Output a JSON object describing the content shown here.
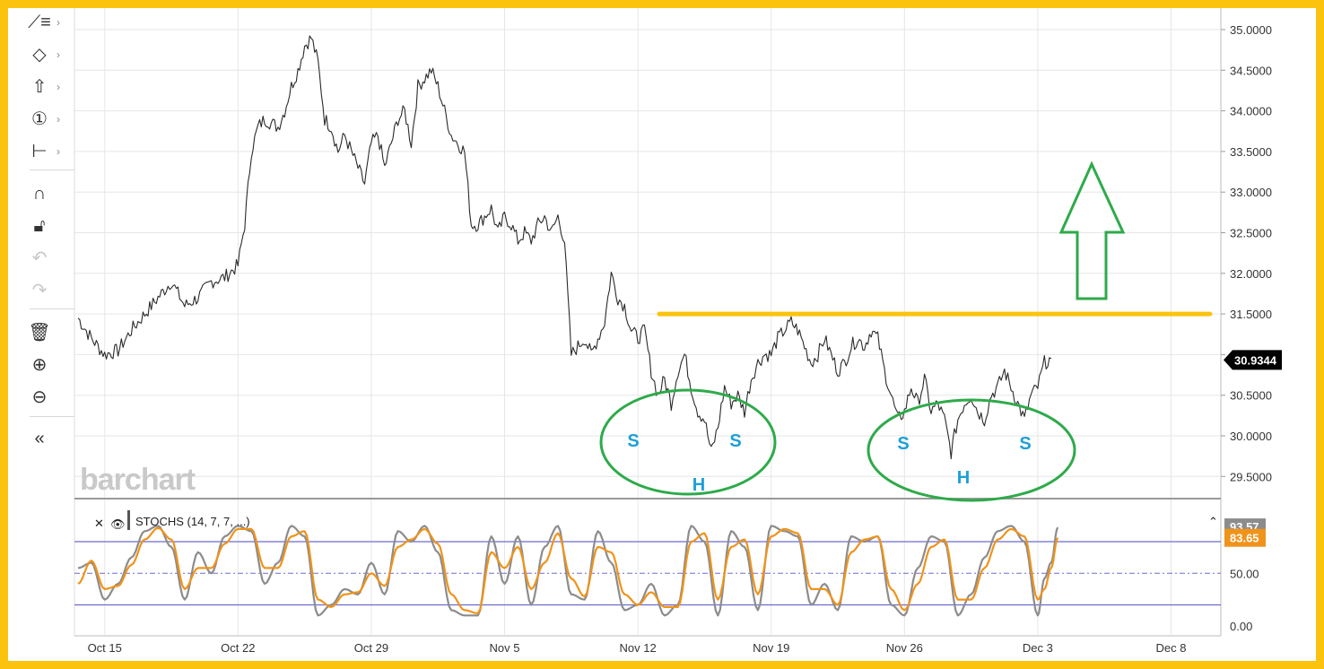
{
  "toolbar": {
    "items": [
      {
        "icon": "trend-line-icon",
        "glyph": "⟋≡",
        "caret": "›"
      },
      {
        "icon": "shapes-icon",
        "glyph": "◇",
        "caret": "›"
      },
      {
        "icon": "arrow-up-icon",
        "glyph": "⇧",
        "caret": "›"
      },
      {
        "icon": "number-circle-icon",
        "glyph": "①",
        "caret": "›"
      },
      {
        "icon": "measure-icon",
        "glyph": "⊢",
        "caret": "›"
      },
      {
        "icon": "magnet-icon",
        "glyph": "∩",
        "caret": ""
      },
      {
        "icon": "unlock-icon",
        "glyph": "🔓︎",
        "caret": ""
      },
      {
        "icon": "undo-icon",
        "glyph": "↶",
        "caret": ""
      },
      {
        "icon": "redo-icon",
        "glyph": "↷",
        "caret": ""
      },
      {
        "icon": "trash-icon",
        "glyph": "🗑︎",
        "caret": ""
      },
      {
        "icon": "zoom-in-icon",
        "glyph": "⊕",
        "caret": ""
      },
      {
        "icon": "zoom-out-icon",
        "glyph": "⊖",
        "caret": ""
      },
      {
        "icon": "collapse-icon",
        "glyph": "«",
        "caret": ""
      }
    ]
  },
  "watermark": "barchart",
  "chart_data": {
    "type": "line",
    "price": {
      "y_ticks": [
        "35.0000",
        "34.5000",
        "34.0000",
        "33.5000",
        "33.0000",
        "32.5000",
        "32.0000",
        "31.5000",
        "31.0000",
        "30.5000",
        "30.0000",
        "29.5000"
      ],
      "ylim": [
        29.3,
        35.1
      ],
      "last_value": "30.9344",
      "last_value_color": "#000000",
      "resistance_level": 31.5,
      "resistance_color": "#fbc30d",
      "annotations": [
        "S",
        "H",
        "S",
        "S",
        "H",
        "S"
      ],
      "annotation_color": "#1e9fd8",
      "ellipse_color": "#2eaa4a",
      "arrow_color": "#2eaa4a",
      "keypoints": [
        [
          0,
          31.45
        ],
        [
          2,
          31.2
        ],
        [
          4,
          31.0
        ],
        [
          6,
          31.05
        ],
        [
          8,
          31.3
        ],
        [
          10,
          31.5
        ],
        [
          12,
          31.7
        ],
        [
          14,
          31.9
        ],
        [
          16,
          31.6
        ],
        [
          18,
          31.7
        ],
        [
          20,
          31.9
        ],
        [
          22,
          31.95
        ],
        [
          24,
          32.1
        ],
        [
          25,
          32.6
        ],
        [
          26,
          33.5
        ],
        [
          27,
          33.8
        ],
        [
          28,
          33.9
        ],
        [
          30,
          33.8
        ],
        [
          31,
          34.0
        ],
        [
          32,
          34.3
        ],
        [
          33,
          34.5
        ],
        [
          34,
          34.8
        ],
        [
          35,
          34.9
        ],
        [
          36,
          34.6
        ],
        [
          37,
          33.9
        ],
        [
          38,
          33.8
        ],
        [
          39,
          33.5
        ],
        [
          40,
          33.7
        ],
        [
          41,
          33.5
        ],
        [
          42,
          33.3
        ],
        [
          43,
          33.1
        ],
        [
          44,
          33.6
        ],
        [
          45,
          33.7
        ],
        [
          46,
          33.3
        ],
        [
          47,
          33.6
        ],
        [
          48,
          33.9
        ],
        [
          49,
          34.0
        ],
        [
          50,
          33.6
        ],
        [
          51,
          34.3
        ],
        [
          52,
          34.4
        ],
        [
          53,
          34.5
        ],
        [
          54,
          34.3
        ],
        [
          55,
          34.0
        ],
        [
          56,
          33.7
        ],
        [
          57,
          33.6
        ],
        [
          58,
          33.5
        ],
        [
          59,
          32.6
        ],
        [
          60,
          32.6
        ],
        [
          61,
          32.7
        ],
        [
          62,
          32.8
        ],
        [
          63,
          32.5
        ],
        [
          64,
          32.7
        ],
        [
          65,
          32.6
        ],
        [
          66,
          32.4
        ],
        [
          67,
          32.5
        ],
        [
          68,
          32.4
        ],
        [
          69,
          32.6
        ],
        [
          70,
          32.7
        ],
        [
          71,
          32.5
        ],
        [
          72,
          32.7
        ],
        [
          73,
          32.4
        ],
        [
          74,
          31.0
        ],
        [
          75,
          31.1
        ],
        [
          76,
          31.2
        ],
        [
          77,
          31.0
        ],
        [
          78,
          31.2
        ],
        [
          79,
          31.4
        ],
        [
          80,
          32.0
        ],
        [
          81,
          31.7
        ],
        [
          82,
          31.6
        ],
        [
          83,
          31.3
        ],
        [
          84,
          31.2
        ],
        [
          85,
          31.3
        ],
        [
          86,
          30.8
        ],
        [
          87,
          30.5
        ],
        [
          88,
          30.7
        ],
        [
          89,
          30.4
        ],
        [
          90,
          30.8
        ],
        [
          91,
          31.0
        ],
        [
          92,
          30.6
        ],
        [
          93,
          30.3
        ],
        [
          94,
          30.2
        ],
        [
          95,
          29.8
        ],
        [
          96,
          30.1
        ],
        [
          97,
          30.6
        ],
        [
          98,
          30.4
        ],
        [
          99,
          30.5
        ],
        [
          100,
          30.3
        ],
        [
          101,
          30.7
        ],
        [
          102,
          30.9
        ],
        [
          103,
          31.0
        ],
        [
          104,
          31.0
        ],
        [
          105,
          31.2
        ],
        [
          106,
          31.3
        ],
        [
          107,
          31.4
        ],
        [
          108,
          31.3
        ],
        [
          109,
          31.1
        ],
        [
          110,
          30.9
        ],
        [
          111,
          31.0
        ],
        [
          112,
          31.2
        ],
        [
          113,
          31.0
        ],
        [
          114,
          30.8
        ],
        [
          115,
          30.9
        ],
        [
          116,
          31.1
        ],
        [
          117,
          31.2
        ],
        [
          118,
          31.1
        ],
        [
          119,
          31.3
        ],
        [
          120,
          31.2
        ],
        [
          121,
          30.8
        ],
        [
          122,
          30.5
        ],
        [
          123,
          30.2
        ],
        [
          124,
          30.3
        ],
        [
          125,
          30.6
        ],
        [
          126,
          30.4
        ],
        [
          127,
          30.7
        ],
        [
          128,
          30.3
        ],
        [
          129,
          30.4
        ],
        [
          130,
          30.2
        ],
        [
          131,
          29.8
        ],
        [
          132,
          30.2
        ],
        [
          133,
          30.4
        ],
        [
          134,
          30.5
        ],
        [
          135,
          30.3
        ],
        [
          136,
          30.2
        ],
        [
          137,
          30.5
        ],
        [
          138,
          30.6
        ],
        [
          139,
          30.8
        ],
        [
          140,
          30.6
        ],
        [
          141,
          30.4
        ],
        [
          142,
          30.2
        ],
        [
          143,
          30.5
        ],
        [
          144,
          30.6
        ],
        [
          145,
          30.9
        ],
        [
          146,
          30.95
        ]
      ]
    },
    "stochastic": {
      "label": "STOCHS (14, 7, 7, ...)",
      "y_ticks": [
        "50.00",
        "0.00"
      ],
      "ylim": [
        -5,
        105
      ],
      "upper_band": 80,
      "lower_band": 20,
      "mid_band": 50,
      "last_k": "93.57",
      "last_d": "83.65",
      "k_color": "#8c8c8c",
      "d_color": "#f0931a",
      "band_color": "#6b6bd0",
      "k_points": [
        [
          0,
          55
        ],
        [
          2,
          60
        ],
        [
          4,
          25
        ],
        [
          6,
          40
        ],
        [
          8,
          65
        ],
        [
          10,
          90
        ],
        [
          12,
          95
        ],
        [
          14,
          75
        ],
        [
          16,
          25
        ],
        [
          18,
          70
        ],
        [
          20,
          50
        ],
        [
          22,
          85
        ],
        [
          24,
          95
        ],
        [
          26,
          90
        ],
        [
          28,
          40
        ],
        [
          30,
          60
        ],
        [
          32,
          95
        ],
        [
          34,
          85
        ],
        [
          36,
          10
        ],
        [
          38,
          20
        ],
        [
          40,
          35
        ],
        [
          42,
          30
        ],
        [
          44,
          60
        ],
        [
          46,
          30
        ],
        [
          48,
          90
        ],
        [
          50,
          80
        ],
        [
          52,
          95
        ],
        [
          54,
          70
        ],
        [
          56,
          15
        ],
        [
          58,
          10
        ],
        [
          60,
          10
        ],
        [
          62,
          85
        ],
        [
          64,
          40
        ],
        [
          66,
          85
        ],
        [
          68,
          20
        ],
        [
          70,
          75
        ],
        [
          72,
          95
        ],
        [
          74,
          30
        ],
        [
          76,
          25
        ],
        [
          78,
          90
        ],
        [
          80,
          60
        ],
        [
          82,
          15
        ],
        [
          84,
          20
        ],
        [
          86,
          40
        ],
        [
          88,
          10
        ],
        [
          90,
          20
        ],
        [
          92,
          95
        ],
        [
          94,
          80
        ],
        [
          96,
          10
        ],
        [
          98,
          90
        ],
        [
          100,
          75
        ],
        [
          102,
          15
        ],
        [
          104,
          95
        ],
        [
          106,
          90
        ],
        [
          108,
          85
        ],
        [
          110,
          20
        ],
        [
          112,
          40
        ],
        [
          114,
          15
        ],
        [
          116,
          85
        ],
        [
          118,
          80
        ],
        [
          120,
          85
        ],
        [
          122,
          20
        ],
        [
          124,
          10
        ],
        [
          126,
          55
        ],
        [
          128,
          85
        ],
        [
          130,
          80
        ],
        [
          132,
          10
        ],
        [
          134,
          30
        ],
        [
          136,
          65
        ],
        [
          138,
          90
        ],
        [
          140,
          95
        ],
        [
          142,
          80
        ],
        [
          144,
          10
        ],
        [
          145,
          45
        ],
        [
          146,
          60
        ],
        [
          147,
          93.57
        ]
      ],
      "d_points": [
        [
          0,
          40
        ],
        [
          2,
          62
        ],
        [
          4,
          35
        ],
        [
          6,
          38
        ],
        [
          8,
          58
        ],
        [
          10,
          82
        ],
        [
          12,
          93
        ],
        [
          14,
          82
        ],
        [
          16,
          35
        ],
        [
          18,
          55
        ],
        [
          20,
          55
        ],
        [
          22,
          78
        ],
        [
          24,
          92
        ],
        [
          26,
          92
        ],
        [
          28,
          55
        ],
        [
          30,
          55
        ],
        [
          32,
          85
        ],
        [
          34,
          90
        ],
        [
          36,
          25
        ],
        [
          38,
          18
        ],
        [
          40,
          30
        ],
        [
          42,
          32
        ],
        [
          44,
          50
        ],
        [
          46,
          38
        ],
        [
          48,
          75
        ],
        [
          50,
          82
        ],
        [
          52,
          92
        ],
        [
          54,
          78
        ],
        [
          56,
          30
        ],
        [
          58,
          15
        ],
        [
          60,
          12
        ],
        [
          62,
          70
        ],
        [
          64,
          55
        ],
        [
          66,
          75
        ],
        [
          68,
          35
        ],
        [
          70,
          60
        ],
        [
          72,
          88
        ],
        [
          74,
          45
        ],
        [
          76,
          28
        ],
        [
          78,
          75
        ],
        [
          80,
          70
        ],
        [
          82,
          30
        ],
        [
          84,
          20
        ],
        [
          86,
          32
        ],
        [
          88,
          18
        ],
        [
          90,
          18
        ],
        [
          92,
          80
        ],
        [
          94,
          88
        ],
        [
          96,
          25
        ],
        [
          98,
          75
        ],
        [
          100,
          82
        ],
        [
          102,
          30
        ],
        [
          104,
          85
        ],
        [
          106,
          92
        ],
        [
          108,
          88
        ],
        [
          110,
          35
        ],
        [
          112,
          35
        ],
        [
          114,
          20
        ],
        [
          116,
          70
        ],
        [
          118,
          82
        ],
        [
          120,
          85
        ],
        [
          122,
          35
        ],
        [
          124,
          15
        ],
        [
          126,
          40
        ],
        [
          128,
          75
        ],
        [
          130,
          82
        ],
        [
          132,
          25
        ],
        [
          134,
          25
        ],
        [
          136,
          55
        ],
        [
          138,
          82
        ],
        [
          140,
          92
        ],
        [
          142,
          85
        ],
        [
          144,
          25
        ],
        [
          145,
          35
        ],
        [
          146,
          55
        ],
        [
          147,
          83.65
        ]
      ]
    },
    "x_ticks": [
      {
        "label": "Oct 15",
        "i": 4
      },
      {
        "label": "Oct 22",
        "i": 24
      },
      {
        "label": "Oct 29",
        "i": 44
      },
      {
        "label": "Nov 5",
        "i": 64
      },
      {
        "label": "Nov 12",
        "i": 84
      },
      {
        "label": "Nov 19",
        "i": 104
      },
      {
        "label": "Nov 26",
        "i": 124
      },
      {
        "label": "Dec 3",
        "i": 144
      },
      {
        "label": "Dec 8",
        "i": 164
      }
    ],
    "grid": true
  }
}
